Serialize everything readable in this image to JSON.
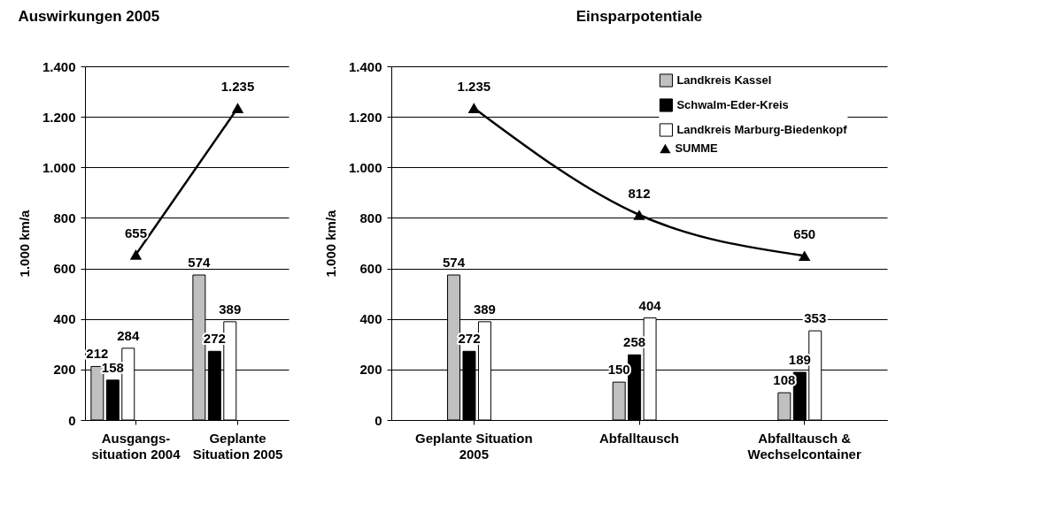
{
  "chart_data": [
    {
      "type": "bar",
      "title": "Auswirkungen 2005",
      "ylabel": "1.000 km/a",
      "categories": [
        "Ausgangs-\nsituation 2004",
        "Geplante\nSituation 2005"
      ],
      "ylim": [
        0,
        1400
      ],
      "yticks": [
        0,
        200,
        400,
        600,
        800,
        {
          "value": 1000,
          "label": "1.000"
        },
        {
          "value": 1200,
          "label": "1.200"
        },
        {
          "value": 1400,
          "label": "1.400"
        }
      ],
      "grid": "y",
      "series": [
        {
          "color": "#c0c0c0",
          "values": [
            212,
            574
          ],
          "value_labels": [
            "212",
            "574"
          ]
        },
        {
          "color": "#000000",
          "values": [
            158,
            272
          ],
          "value_labels": [
            "158",
            "272"
          ]
        },
        {
          "color": "#ffffff",
          "values": [
            284,
            389
          ],
          "value_labels": [
            "284",
            "389"
          ]
        },
        {
          "type": "line",
          "marker": "triangle",
          "color": "#000000",
          "values": [
            655,
            1235
          ],
          "value_labels": [
            "655",
            "1.235"
          ]
        }
      ]
    },
    {
      "type": "bar",
      "title": "Einsparpotentiale",
      "ylabel": "1.000 km/a",
      "categories": [
        "Geplante Situation\n2005",
        "Abfalltausch",
        "Abfalltausch &\nWechselcontainer"
      ],
      "ylim": [
        0,
        1400
      ],
      "yticks": [
        0,
        200,
        400,
        600,
        800,
        {
          "value": 1000,
          "label": "1.000"
        },
        {
          "value": 1200,
          "label": "1.200"
        },
        {
          "value": 1400,
          "label": "1.400"
        }
      ],
      "grid": "y",
      "legend": "top right",
      "series": [
        {
          "name": "Landkreis Kassel",
          "color": "#c0c0c0",
          "values": [
            574,
            150,
            108
          ],
          "value_labels": [
            "574",
            "150",
            "108"
          ]
        },
        {
          "name": "Schwalm-Eder-Kreis",
          "color": "#000000",
          "values": [
            272,
            258,
            189
          ],
          "value_labels": [
            "272",
            "258",
            "189"
          ]
        },
        {
          "name": "Landkreis Marburg-Biedenkopf",
          "color": "#ffffff",
          "values": [
            389,
            404,
            353
          ],
          "value_labels": [
            "389",
            "404",
            "353"
          ]
        },
        {
          "name": "SUMME",
          "type": "line",
          "marker": "triangle",
          "color": "#000000",
          "values": [
            1235,
            812,
            650
          ],
          "value_labels": [
            "1.235",
            "812",
            "650"
          ]
        }
      ]
    }
  ]
}
